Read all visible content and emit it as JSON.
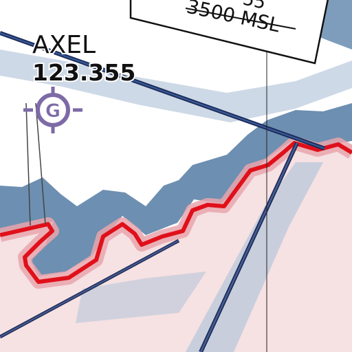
{
  "waypoint": {
    "name": "AXEL",
    "frequency": "123.355",
    "symbol_letter": "G",
    "icon": "gps-waypoint-icon"
  },
  "altitude_label": {
    "partial_text": "55",
    "text": "3500 MSL"
  },
  "colors": {
    "airspace_border_red": "#e0101a",
    "airspace_fill_pink": "#f6e1e3",
    "airspace_halo_pink": "#e8a6ad",
    "buffer_blue": "#6d8fb1",
    "light_blue_band": "#c8d5e3",
    "waypoint_purple": "#7d6aa6",
    "route_navy": "#2e4578"
  }
}
